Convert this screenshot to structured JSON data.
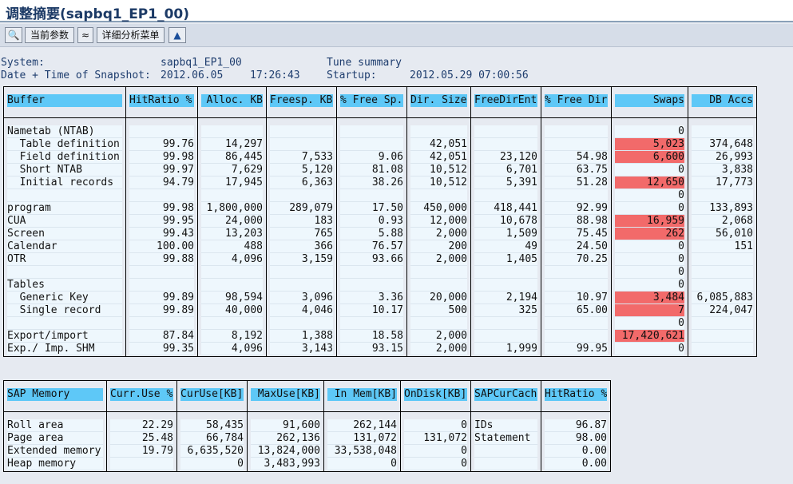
{
  "title": "调整摘要(sapbq1_EP1_00)",
  "toolbar": {
    "btn_current_params": "当前参数",
    "btn_detail_menu": "详细分析菜单"
  },
  "info": {
    "system_label": "System:",
    "system_value": "sapbq1_EP1_00",
    "tune_summary": "Tune summary",
    "snapshot_label": "Date + Time of Snapshot:",
    "snapshot_date": "2012.06.05",
    "snapshot_time": "17:26:43",
    "startup_label": "Startup:",
    "startup_value": "2012.05.29 07:00:56"
  },
  "colors": {
    "highlight": "#f26a6a",
    "header": "#5ec8f7"
  },
  "buffer_table": {
    "headers": [
      "Buffer",
      "HitRatio %",
      "Alloc. KB",
      "Freesp. KB",
      "% Free Sp.",
      "Dir. Size",
      "FreeDirEnt",
      "% Free Dir",
      "Swaps",
      "DB Accs"
    ],
    "rows": [
      [
        "Nametab (NTAB)",
        "",
        "",
        "",
        "",
        "",
        "",
        "",
        "0",
        ""
      ],
      [
        "  Table definition",
        "99.76",
        "14,297",
        "",
        "",
        "42,051",
        "",
        "",
        "5,023",
        "374,648"
      ],
      [
        "  Field definition",
        "99.98",
        "86,445",
        "7,533",
        "9.06",
        "42,051",
        "23,120",
        "54.98",
        "6,600",
        "26,993"
      ],
      [
        "  Short NTAB",
        "99.97",
        "7,629",
        "5,120",
        "81.08",
        "10,512",
        "6,701",
        "63.75",
        "0",
        "3,838"
      ],
      [
        "  Initial records",
        "94.79",
        "17,945",
        "6,363",
        "38.26",
        "10,512",
        "5,391",
        "51.28",
        "12,650",
        "17,773"
      ],
      [
        "",
        "",
        "",
        "",
        "",
        "",
        "",
        "",
        "0",
        ""
      ],
      [
        "program",
        "99.98",
        "1,800,000",
        "289,079",
        "17.50",
        "450,000",
        "418,441",
        "92.99",
        "0",
        "133,893"
      ],
      [
        "CUA",
        "99.95",
        "24,000",
        "183",
        "0.93",
        "12,000",
        "10,678",
        "88.98",
        "16,959",
        "2,068"
      ],
      [
        "Screen",
        "99.43",
        "13,203",
        "765",
        "5.88",
        "2,000",
        "1,509",
        "75.45",
        "262",
        "56,010"
      ],
      [
        "Calendar",
        "100.00",
        "488",
        "366",
        "76.57",
        "200",
        "49",
        "24.50",
        "0",
        "151"
      ],
      [
        "OTR",
        "99.88",
        "4,096",
        "3,159",
        "93.66",
        "2,000",
        "1,405",
        "70.25",
        "0",
        ""
      ],
      [
        "",
        "",
        "",
        "",
        "",
        "",
        "",
        "",
        "0",
        ""
      ],
      [
        "Tables",
        "",
        "",
        "",
        "",
        "",
        "",
        "",
        "0",
        ""
      ],
      [
        "  Generic Key",
        "99.89",
        "98,594",
        "3,096",
        "3.36",
        "20,000",
        "2,194",
        "10.97",
        "3,484",
        "6,085,883"
      ],
      [
        "  Single record",
        "99.89",
        "40,000",
        "4,046",
        "10.17",
        "500",
        "325",
        "65.00",
        "7",
        "224,047"
      ],
      [
        "",
        "",
        "",
        "",
        "",
        "",
        "",
        "",
        "0",
        ""
      ],
      [
        "Export/import",
        "87.84",
        "8,192",
        "1,388",
        "18.58",
        "2,000",
        "",
        "",
        "17,420,621",
        ""
      ],
      [
        "Exp./ Imp. SHM",
        "99.35",
        "4,096",
        "3,143",
        "93.15",
        "2,000",
        "1,999",
        "99.95",
        "0",
        ""
      ]
    ],
    "swaps_highlighted": [
      false,
      true,
      true,
      false,
      true,
      false,
      false,
      true,
      true,
      false,
      false,
      false,
      false,
      true,
      true,
      false,
      true,
      false
    ]
  },
  "memory_table": {
    "headers": [
      "SAP Memory",
      "Curr.Use %",
      "CurUse[KB]",
      "MaxUse[KB]",
      "In Mem[KB]",
      "OnDisk[KB]",
      "SAPCurCach",
      "HitRatio %"
    ],
    "rows": [
      [
        "Roll area",
        "22.29",
        "58,435",
        "91,600",
        "262,144",
        "0",
        "IDs",
        "96.87"
      ],
      [
        "Page area",
        "25.48",
        "66,784",
        "262,136",
        "131,072",
        "131,072",
        "Statement",
        "98.00"
      ],
      [
        "Extended memory",
        "19.79",
        "6,635,520",
        "13,824,000",
        "33,538,048",
        "0",
        "",
        "0.00"
      ],
      [
        "Heap memory",
        "",
        "0",
        "3,483,993",
        "0",
        "0",
        "",
        "0.00"
      ]
    ]
  }
}
